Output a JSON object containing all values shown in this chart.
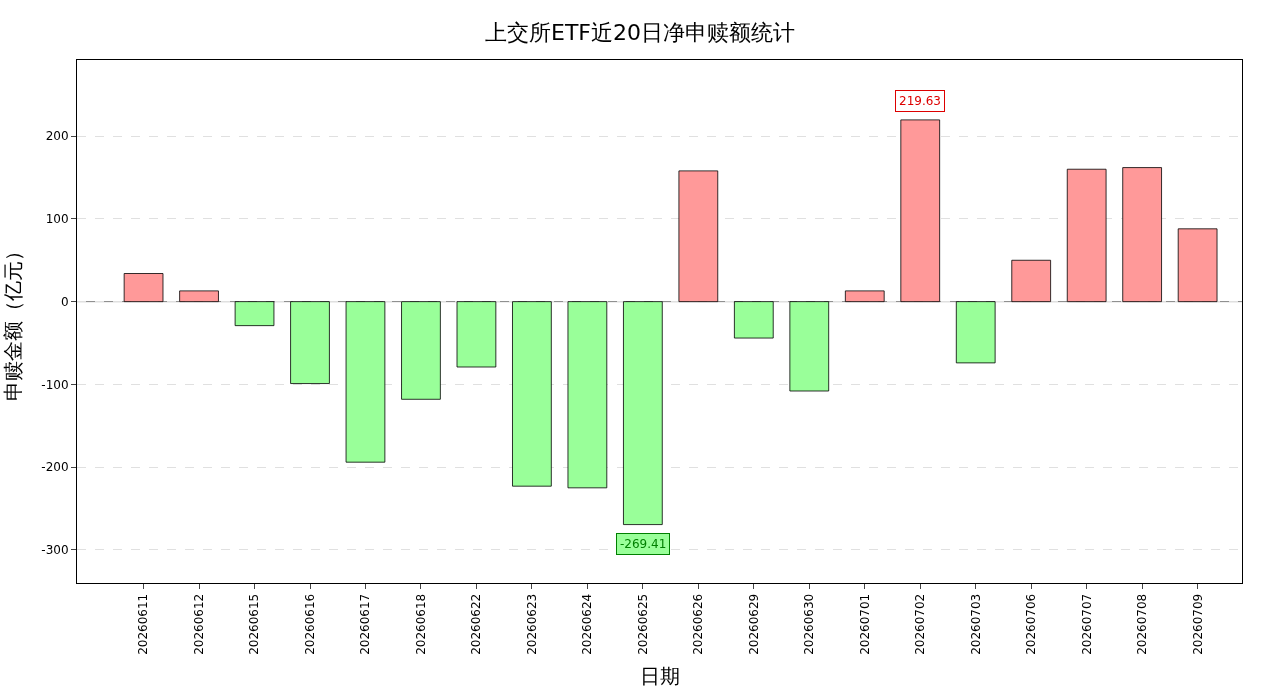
{
  "chart_data": {
    "type": "bar",
    "title": "上交所ETF近20日净申赎额统计",
    "xlabel": "日期",
    "ylabel": "申赎金额（亿元）",
    "categories": [
      "20260611",
      "20260612",
      "20260615",
      "20260616",
      "20260617",
      "20260618",
      "20260622",
      "20260623",
      "20260624",
      "20260625",
      "20260626",
      "20260629",
      "20260630",
      "20260701",
      "20260702",
      "20260703",
      "20260706",
      "20260707",
      "20260708",
      "20260709"
    ],
    "values": [
      34,
      13,
      -29,
      -99,
      -194,
      -118,
      -79,
      -223,
      -225,
      -269.41,
      158,
      -44,
      -108,
      13,
      219.63,
      -74,
      50,
      160,
      162,
      88
    ],
    "colors": [
      "#ff9999",
      "#ff9999",
      "#99ff99",
      "#99ff99",
      "#99ff99",
      "#99ff99",
      "#99ff99",
      "#99ff99",
      "#99ff99",
      "#99ff99",
      "#ff9999",
      "#99ff99",
      "#99ff99",
      "#ff9999",
      "#ff9999",
      "#99ff99",
      "#ff9999",
      "#ff9999",
      "#ff9999",
      "#ff9999"
    ],
    "ylim": [
      -340,
      292
    ],
    "yticks": [
      -300,
      -200,
      -100,
      0,
      100,
      200
    ],
    "grid": "y",
    "ref_lines": [
      {
        "axis": "y",
        "value": 0,
        "color": "#808080"
      }
    ],
    "annotations": [
      {
        "text": "219.63",
        "x": "20260702",
        "y": 219.63
      },
      {
        "text": "-269.41",
        "x": "20260625",
        "y": -269.41
      }
    ]
  }
}
